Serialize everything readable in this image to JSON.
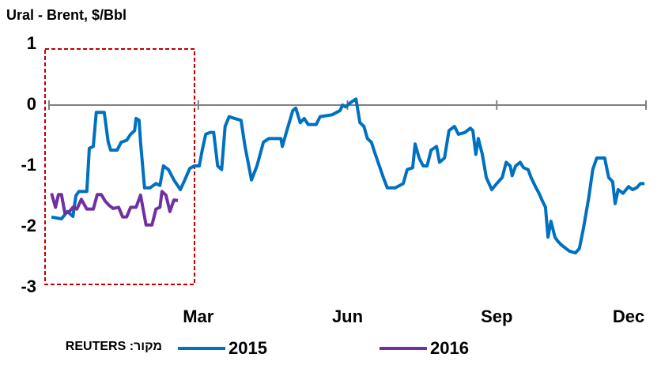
{
  "chart_data": {
    "type": "line",
    "title": "Ural - Brent, $/Bbl",
    "source": "מקור: REUTERS",
    "legend": "bottom",
    "xlim": [
      0,
      12
    ],
    "xticks": [
      {
        "value": 3,
        "label": "Mar"
      },
      {
        "value": 6,
        "label": "Jun"
      },
      {
        "value": 9,
        "label": "Sep"
      },
      {
        "value": 12,
        "label": "Dec"
      }
    ],
    "ylim": [
      -3,
      1
    ],
    "yticks": [
      1,
      0,
      -1,
      -2,
      -3
    ],
    "series": [
      {
        "name": "2015",
        "color": "#0070c0",
        "x": [
          0.05,
          0.25,
          0.37,
          0.48,
          0.54,
          0.6,
          0.76,
          0.81,
          0.89,
          0.95,
          1.11,
          1.19,
          1.24,
          1.37,
          1.45,
          1.56,
          1.64,
          1.72,
          1.75,
          1.81,
          1.84,
          1.92,
          2.03,
          2.15,
          2.23,
          2.3,
          2.4,
          2.51,
          2.64,
          2.73,
          2.83,
          2.92,
          3.02,
          3.08,
          3.15,
          3.24,
          3.31,
          3.39,
          3.47,
          3.54,
          3.62,
          3.73,
          3.86,
          3.94,
          4.07,
          4.18,
          4.31,
          4.42,
          4.66,
          4.69,
          4.77,
          4.9,
          4.96,
          5.05,
          5.13,
          5.21,
          5.37,
          5.45,
          5.69,
          5.85,
          5.9,
          5.96,
          6.06,
          6.17,
          6.25,
          6.33,
          6.4,
          6.48,
          6.56,
          6.64,
          6.72,
          6.8,
          6.96,
          7.12,
          7.2,
          7.31,
          7.36,
          7.44,
          7.52,
          7.6,
          7.68,
          7.79,
          7.85,
          7.95,
          8.04,
          8.15,
          8.23,
          8.36,
          8.47,
          8.52,
          8.58,
          8.63,
          8.71,
          8.79,
          8.9,
          9.0,
          9.11,
          9.19,
          9.27,
          9.31,
          9.38,
          9.47,
          9.54,
          9.63,
          9.69,
          9.79,
          9.85,
          9.92,
          9.98,
          10.03,
          10.09,
          10.17,
          10.22,
          10.3,
          10.46,
          10.58,
          10.66,
          10.74,
          10.85,
          10.93,
          11.01,
          11.17,
          11.25,
          11.33,
          11.38,
          11.44,
          11.54,
          11.65,
          11.73,
          11.81,
          11.89,
          11.97
        ],
        "values": [
          -1.84,
          -1.87,
          -1.75,
          -1.83,
          -1.49,
          -1.42,
          -1.42,
          -0.71,
          -0.68,
          -0.12,
          -0.12,
          -0.61,
          -0.74,
          -0.74,
          -0.61,
          -0.58,
          -0.48,
          -0.42,
          -0.22,
          -0.25,
          -0.61,
          -1.36,
          -1.36,
          -1.29,
          -1.32,
          -1.0,
          -1.06,
          -1.23,
          -1.39,
          -1.23,
          -1.04,
          -1.0,
          -1.0,
          -0.74,
          -0.48,
          -0.45,
          -0.45,
          -1.0,
          -1.06,
          -0.35,
          -0.19,
          -0.22,
          -0.25,
          -0.68,
          -1.23,
          -1.0,
          -0.61,
          -0.55,
          -0.55,
          -0.68,
          -0.45,
          -0.09,
          -0.05,
          -0.29,
          -0.22,
          -0.32,
          -0.32,
          -0.19,
          -0.16,
          -0.09,
          0.0,
          -0.03,
          0.04,
          0.1,
          -0.29,
          -0.35,
          -0.55,
          -0.61,
          -0.81,
          -1.0,
          -1.19,
          -1.36,
          -1.36,
          -1.29,
          -1.06,
          -1.03,
          -0.64,
          -0.87,
          -1.0,
          -1.0,
          -0.74,
          -0.68,
          -0.94,
          -0.87,
          -0.42,
          -0.35,
          -0.48,
          -0.45,
          -0.38,
          -0.42,
          -0.81,
          -0.55,
          -0.81,
          -1.19,
          -1.39,
          -1.29,
          -1.19,
          -0.94,
          -1.0,
          -1.16,
          -1.0,
          -0.94,
          -1.03,
          -1.06,
          -1.19,
          -1.36,
          -1.45,
          -1.58,
          -1.68,
          -2.17,
          -1.91,
          -2.17,
          -2.23,
          -2.3,
          -2.4,
          -2.43,
          -2.36,
          -2.04,
          -1.52,
          -1.06,
          -0.87,
          -0.87,
          -1.19,
          -1.26,
          -1.62,
          -1.39,
          -1.45,
          -1.34,
          -1.39,
          -1.36,
          -1.29,
          -1.29
        ]
      },
      {
        "name": "2016",
        "color": "#7030a0",
        "x": [
          0.05,
          0.13,
          0.19,
          0.25,
          0.32,
          0.41,
          0.48,
          0.56,
          0.65,
          0.76,
          0.89,
          0.97,
          1.05,
          1.13,
          1.21,
          1.29,
          1.4,
          1.48,
          1.56,
          1.64,
          1.75,
          1.84,
          1.95,
          2.07,
          2.15,
          2.23,
          2.27,
          2.35,
          2.43,
          2.51,
          2.59
        ],
        "values": [
          -1.45,
          -1.68,
          -1.47,
          -1.47,
          -1.78,
          -1.75,
          -1.68,
          -1.71,
          -1.55,
          -1.71,
          -1.71,
          -1.47,
          -1.47,
          -1.58,
          -1.65,
          -1.7,
          -1.68,
          -1.84,
          -1.84,
          -1.68,
          -1.68,
          -1.48,
          -1.97,
          -1.97,
          -1.71,
          -1.68,
          -1.42,
          -1.48,
          -1.75,
          -1.56,
          -1.57
        ]
      }
    ]
  }
}
